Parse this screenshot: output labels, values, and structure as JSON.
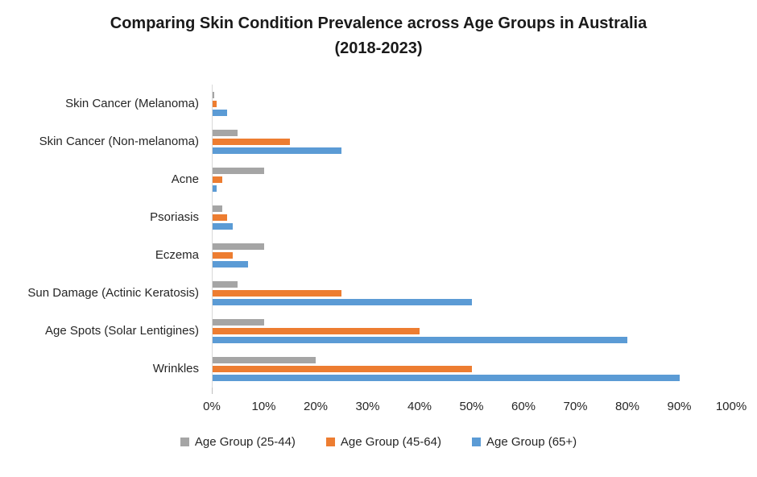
{
  "chart_data": {
    "type": "bar",
    "orientation": "horizontal",
    "title_line1": "Comparing Skin Condition Prevalence across Age Groups in Australia",
    "title_line2": "(2018-2023)",
    "categories": [
      "Skin Cancer (Melanoma)",
      "Skin Cancer (Non-melanoma)",
      "Acne",
      "Psoriasis",
      "Eczema",
      "Sun Damage (Actinic Keratosis)",
      "Age Spots (Solar Lentigines)",
      "Wrinkles"
    ],
    "series": [
      {
        "name": "Age Group (25-44)",
        "color": "#a5a5a5",
        "values": [
          0.5,
          5,
          10,
          2,
          10,
          5,
          10,
          20
        ]
      },
      {
        "name": "Age Group (45-64)",
        "color": "#ed7d31",
        "values": [
          1,
          15,
          2,
          3,
          4,
          25,
          40,
          50
        ]
      },
      {
        "name": "Age Group (65+)",
        "color": "#5b9bd5",
        "values": [
          3,
          25,
          1,
          4,
          7,
          50,
          80,
          90
        ]
      }
    ],
    "x_axis": {
      "min": 0,
      "max": 100,
      "tick_labels": [
        "0%",
        "10%",
        "20%",
        "30%",
        "40%",
        "50%",
        "60%",
        "70%",
        "80%",
        "90%",
        "100%"
      ]
    },
    "xlabel": "",
    "ylabel": "",
    "grid": false,
    "legend_position": "bottom"
  },
  "colors": {
    "background": "#ffffff",
    "axis_line": "#d9d9d9",
    "text": "#262626",
    "title_text": "#1a1a1a"
  }
}
